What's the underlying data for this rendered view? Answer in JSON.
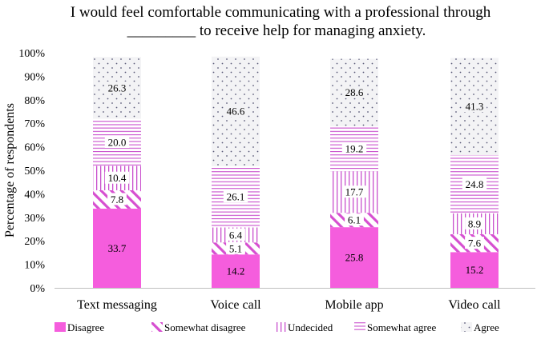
{
  "chart_data": {
    "type": "bar",
    "stacked": true,
    "title_line1": "I would feel comfortable communicating with a professional through",
    "title_line2": "_________ to receive help for managing anxiety.",
    "xlabel": "",
    "ylabel": "Percentage of respondents",
    "ylim": [
      0,
      100
    ],
    "y_ticks": [
      "0%",
      "10%",
      "20%",
      "30%",
      "40%",
      "50%",
      "60%",
      "70%",
      "80%",
      "90%",
      "100%"
    ],
    "categories": [
      "Text messaging",
      "Voice call",
      "Mobile app",
      "Video call"
    ],
    "series": [
      {
        "name": "Disagree",
        "values": [
          33.7,
          14.2,
          25.8,
          15.2
        ]
      },
      {
        "name": "Somewhat disagree",
        "values": [
          7.8,
          5.1,
          6.1,
          7.6
        ]
      },
      {
        "name": "Undecided",
        "values": [
          10.4,
          6.4,
          17.7,
          8.9
        ]
      },
      {
        "name": "Somewhat agree",
        "values": [
          20.0,
          26.1,
          19.2,
          24.8
        ]
      },
      {
        "name": "Agree",
        "values": [
          26.3,
          46.6,
          28.6,
          41.3
        ]
      }
    ],
    "data_labels": [
      [
        "33.7",
        "14.2",
        "25.8",
        "15.2"
      ],
      [
        "7.8",
        "5.1",
        "6.1",
        "7.6"
      ],
      [
        "10.4",
        "6.4",
        "17.7",
        "8.9"
      ],
      [
        "20.0",
        "26.1",
        "19.2",
        "24.8"
      ],
      [
        "26.3",
        "46.6",
        "28.6",
        "41.3"
      ]
    ],
    "legend_position": "bottom",
    "colors": {
      "accent": "#f55ddd",
      "pattern": "#c93fc0",
      "dots": "#6a6a8a"
    }
  }
}
